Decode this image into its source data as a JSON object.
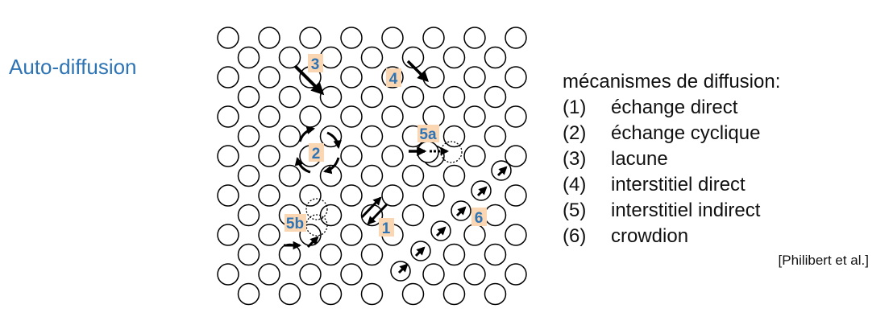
{
  "title": "Auto-diffusion",
  "legend": {
    "heading": "mécanismes de diffusion:",
    "items": [
      {
        "num": "(1)",
        "label": "échange direct"
      },
      {
        "num": "(2)",
        "label": "échange cyclique"
      },
      {
        "num": "(3)",
        "label": "lacune"
      },
      {
        "num": "(4)",
        "label": "interstitiel direct"
      },
      {
        "num": "(5)",
        "label": "interstitiel indirect"
      },
      {
        "num": "(6)",
        "label": "crowdion"
      }
    ]
  },
  "citation": "[Philibert et al.]",
  "labels": {
    "l1": "1",
    "l2": "2",
    "l3": "3",
    "l4": "4",
    "l5a": "5a",
    "l5b": "5b",
    "l6": "6"
  },
  "colors": {
    "label_bg": "#fbd6b2",
    "label_text": "#2e74b5",
    "accent": "#2e74b5"
  }
}
